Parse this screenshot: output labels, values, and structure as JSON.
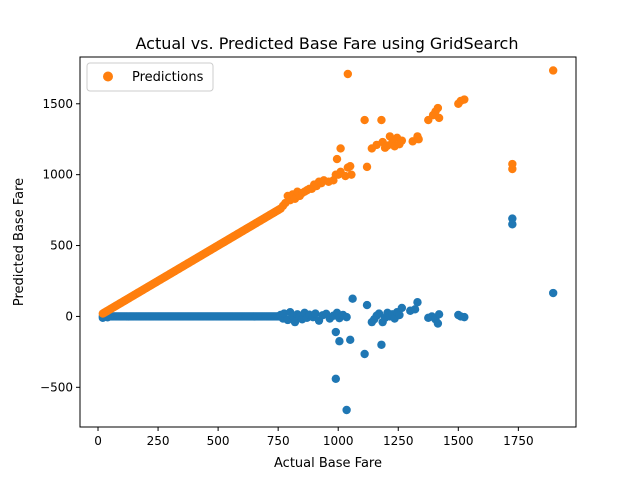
{
  "chart_data": {
    "type": "scatter",
    "title": "Actual vs. Predicted Base Fare using GridSearch",
    "xlabel": "Actual Base Fare",
    "ylabel": "Predicted Base Fare",
    "xlim": [
      -75,
      1990
    ],
    "ylim": [
      -780,
      1830
    ],
    "xticks": [
      0,
      250,
      500,
      750,
      1000,
      1250,
      1500,
      1750
    ],
    "yticks": [
      -500,
      0,
      500,
      1000,
      1500
    ],
    "grid": false,
    "legend": {
      "placement": "top-left",
      "entries": [
        "Predictions"
      ]
    },
    "series": [
      {
        "name": "",
        "color": "#1f77b4",
        "dense_band": {
          "x_from": 20,
          "x_to": 760,
          "y_from": 0,
          "y_to": 0
        },
        "points": [
          [
            20,
            -10
          ],
          [
            30,
            8
          ],
          [
            40,
            -6
          ],
          [
            760,
            10
          ],
          [
            770,
            -15
          ],
          [
            775,
            20
          ],
          [
            790,
            -25
          ],
          [
            800,
            30
          ],
          [
            810,
            5
          ],
          [
            820,
            -40
          ],
          [
            830,
            15
          ],
          [
            840,
            0
          ],
          [
            850,
            -20
          ],
          [
            860,
            25
          ],
          [
            870,
            -10
          ],
          [
            880,
            12
          ],
          [
            895,
            -5
          ],
          [
            905,
            20
          ],
          [
            920,
            -30
          ],
          [
            935,
            8
          ],
          [
            950,
            18
          ],
          [
            965,
            -15
          ],
          [
            980,
            5
          ],
          [
            995,
            25
          ],
          [
            1005,
            -12
          ],
          [
            1020,
            10
          ],
          [
            1035,
            -5
          ],
          [
            990,
            -110
          ],
          [
            1005,
            -175
          ],
          [
            990,
            -440
          ],
          [
            1035,
            -660
          ],
          [
            1050,
            -165
          ],
          [
            1060,
            125
          ],
          [
            1110,
            -265
          ],
          [
            1120,
            80
          ],
          [
            1140,
            -40
          ],
          [
            1150,
            -20
          ],
          [
            1160,
            5
          ],
          [
            1170,
            20
          ],
          [
            1180,
            -200
          ],
          [
            1185,
            -40
          ],
          [
            1195,
            -10
          ],
          [
            1205,
            25
          ],
          [
            1215,
            0
          ],
          [
            1225,
            15
          ],
          [
            1235,
            -15
          ],
          [
            1245,
            30
          ],
          [
            1255,
            10
          ],
          [
            1265,
            60
          ],
          [
            1300,
            40
          ],
          [
            1320,
            50
          ],
          [
            1330,
            100
          ],
          [
            1375,
            -10
          ],
          [
            1390,
            0
          ],
          [
            1405,
            -20
          ],
          [
            1415,
            -50
          ],
          [
            1420,
            15
          ],
          [
            1500,
            10
          ],
          [
            1510,
            0
          ],
          [
            1525,
            -5
          ],
          [
            1725,
            690
          ],
          [
            1725,
            650
          ],
          [
            1895,
            165
          ]
        ]
      },
      {
        "name": "Predictions",
        "color": "#ff7f0e",
        "dense_band": {
          "x_from": 20,
          "x_to": 760,
          "y_from": 20,
          "y_to": 760
        },
        "points": [
          [
            770,
            780
          ],
          [
            780,
            800
          ],
          [
            790,
            850
          ],
          [
            800,
            820
          ],
          [
            810,
            860
          ],
          [
            820,
            830
          ],
          [
            830,
            880
          ],
          [
            840,
            850
          ],
          [
            850,
            870
          ],
          [
            860,
            880
          ],
          [
            870,
            890
          ],
          [
            880,
            900
          ],
          [
            890,
            900
          ],
          [
            900,
            930
          ],
          [
            910,
            920
          ],
          [
            920,
            950
          ],
          [
            930,
            940
          ],
          [
            940,
            960
          ],
          [
            960,
            950
          ],
          [
            980,
            960
          ],
          [
            990,
            1000
          ],
          [
            1000,
            1000
          ],
          [
            1010,
            1020
          ],
          [
            1030,
            990
          ],
          [
            1040,
            1050
          ],
          [
            1055,
            1000
          ],
          [
            995,
            1110
          ],
          [
            1010,
            1185
          ],
          [
            1050,
            1060
          ],
          [
            1040,
            1710
          ],
          [
            1120,
            1055
          ],
          [
            1110,
            1385
          ],
          [
            1140,
            1185
          ],
          [
            1160,
            1210
          ],
          [
            1180,
            1385
          ],
          [
            1185,
            1230
          ],
          [
            1195,
            1190
          ],
          [
            1205,
            1205
          ],
          [
            1215,
            1270
          ],
          [
            1225,
            1225
          ],
          [
            1235,
            1200
          ],
          [
            1245,
            1260
          ],
          [
            1255,
            1215
          ],
          [
            1265,
            1240
          ],
          [
            1310,
            1235
          ],
          [
            1330,
            1270
          ],
          [
            1335,
            1250
          ],
          [
            1375,
            1385
          ],
          [
            1395,
            1420
          ],
          [
            1405,
            1445
          ],
          [
            1415,
            1470
          ],
          [
            1420,
            1400
          ],
          [
            1500,
            1500
          ],
          [
            1510,
            1520
          ],
          [
            1525,
            1530
          ],
          [
            1725,
            1075
          ],
          [
            1725,
            1040
          ],
          [
            1895,
            1735
          ]
        ]
      }
    ]
  }
}
